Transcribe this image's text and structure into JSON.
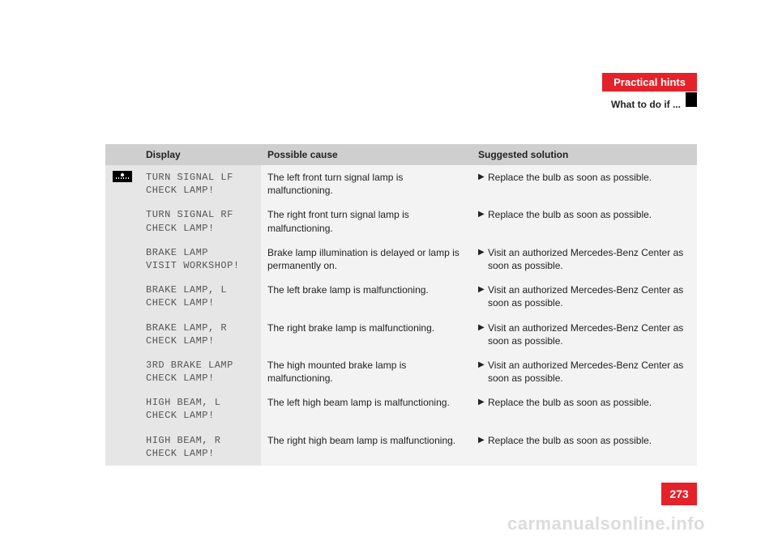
{
  "header": {
    "chapter": "Practical hints",
    "section": "What to do if ..."
  },
  "table": {
    "columns": [
      "Display",
      "Possible cause",
      "Suggested solution"
    ],
    "rows": [
      {
        "display": "TURN SIGNAL LF\nCHECK LAMP!",
        "cause": "The left front turn signal lamp is malfunctioning.",
        "solution": "Replace the bulb as soon as possible.",
        "icon": true
      },
      {
        "display": "TURN SIGNAL RF\nCHECK LAMP!",
        "cause": "The right front turn signal lamp is malfunctioning.",
        "solution": "Replace the bulb as soon as possible.",
        "icon": false
      },
      {
        "display": "BRAKE LAMP\nVISIT WORKSHOP!",
        "cause": "Brake lamp illumination is delayed or lamp is permanently on.",
        "solution": "Visit an authorized Mercedes-Benz Center as soon as possible.",
        "icon": false
      },
      {
        "display": "BRAKE LAMP, L\nCHECK LAMP!",
        "cause": "The left brake lamp is malfunctioning.",
        "solution": "Visit an authorized Mercedes-Benz Center as soon as possible.",
        "icon": false
      },
      {
        "display": "BRAKE LAMP, R\nCHECK LAMP!",
        "cause": "The right brake lamp is malfunctioning.",
        "solution": "Visit an authorized Mercedes-Benz Center as soon as possible.",
        "icon": false
      },
      {
        "display": "3RD BRAKE LAMP\nCHECK LAMP!",
        "cause": "The high mounted brake lamp is malfunctioning.",
        "solution": "Visit an authorized Mercedes-Benz Center as soon as possible.",
        "icon": false
      },
      {
        "display": "HIGH BEAM, L\nCHECK LAMP!",
        "cause": "The left high beam lamp is malfunctioning.",
        "solution": "Replace the bulb as soon as possible.",
        "icon": false
      },
      {
        "display": "HIGH BEAM, R\nCHECK LAMP!",
        "cause": "The right high beam lamp is malfunctioning.",
        "solution": "Replace the bulb as soon as possible.",
        "icon": false
      }
    ]
  },
  "page_number": "273",
  "watermark": "carmanualsonline.info",
  "colors": {
    "brand_red": "#e42229",
    "header_grey": "#cfcfcf",
    "light_grey": "#e6e6e6",
    "lighter_grey": "#f3f3f3"
  }
}
